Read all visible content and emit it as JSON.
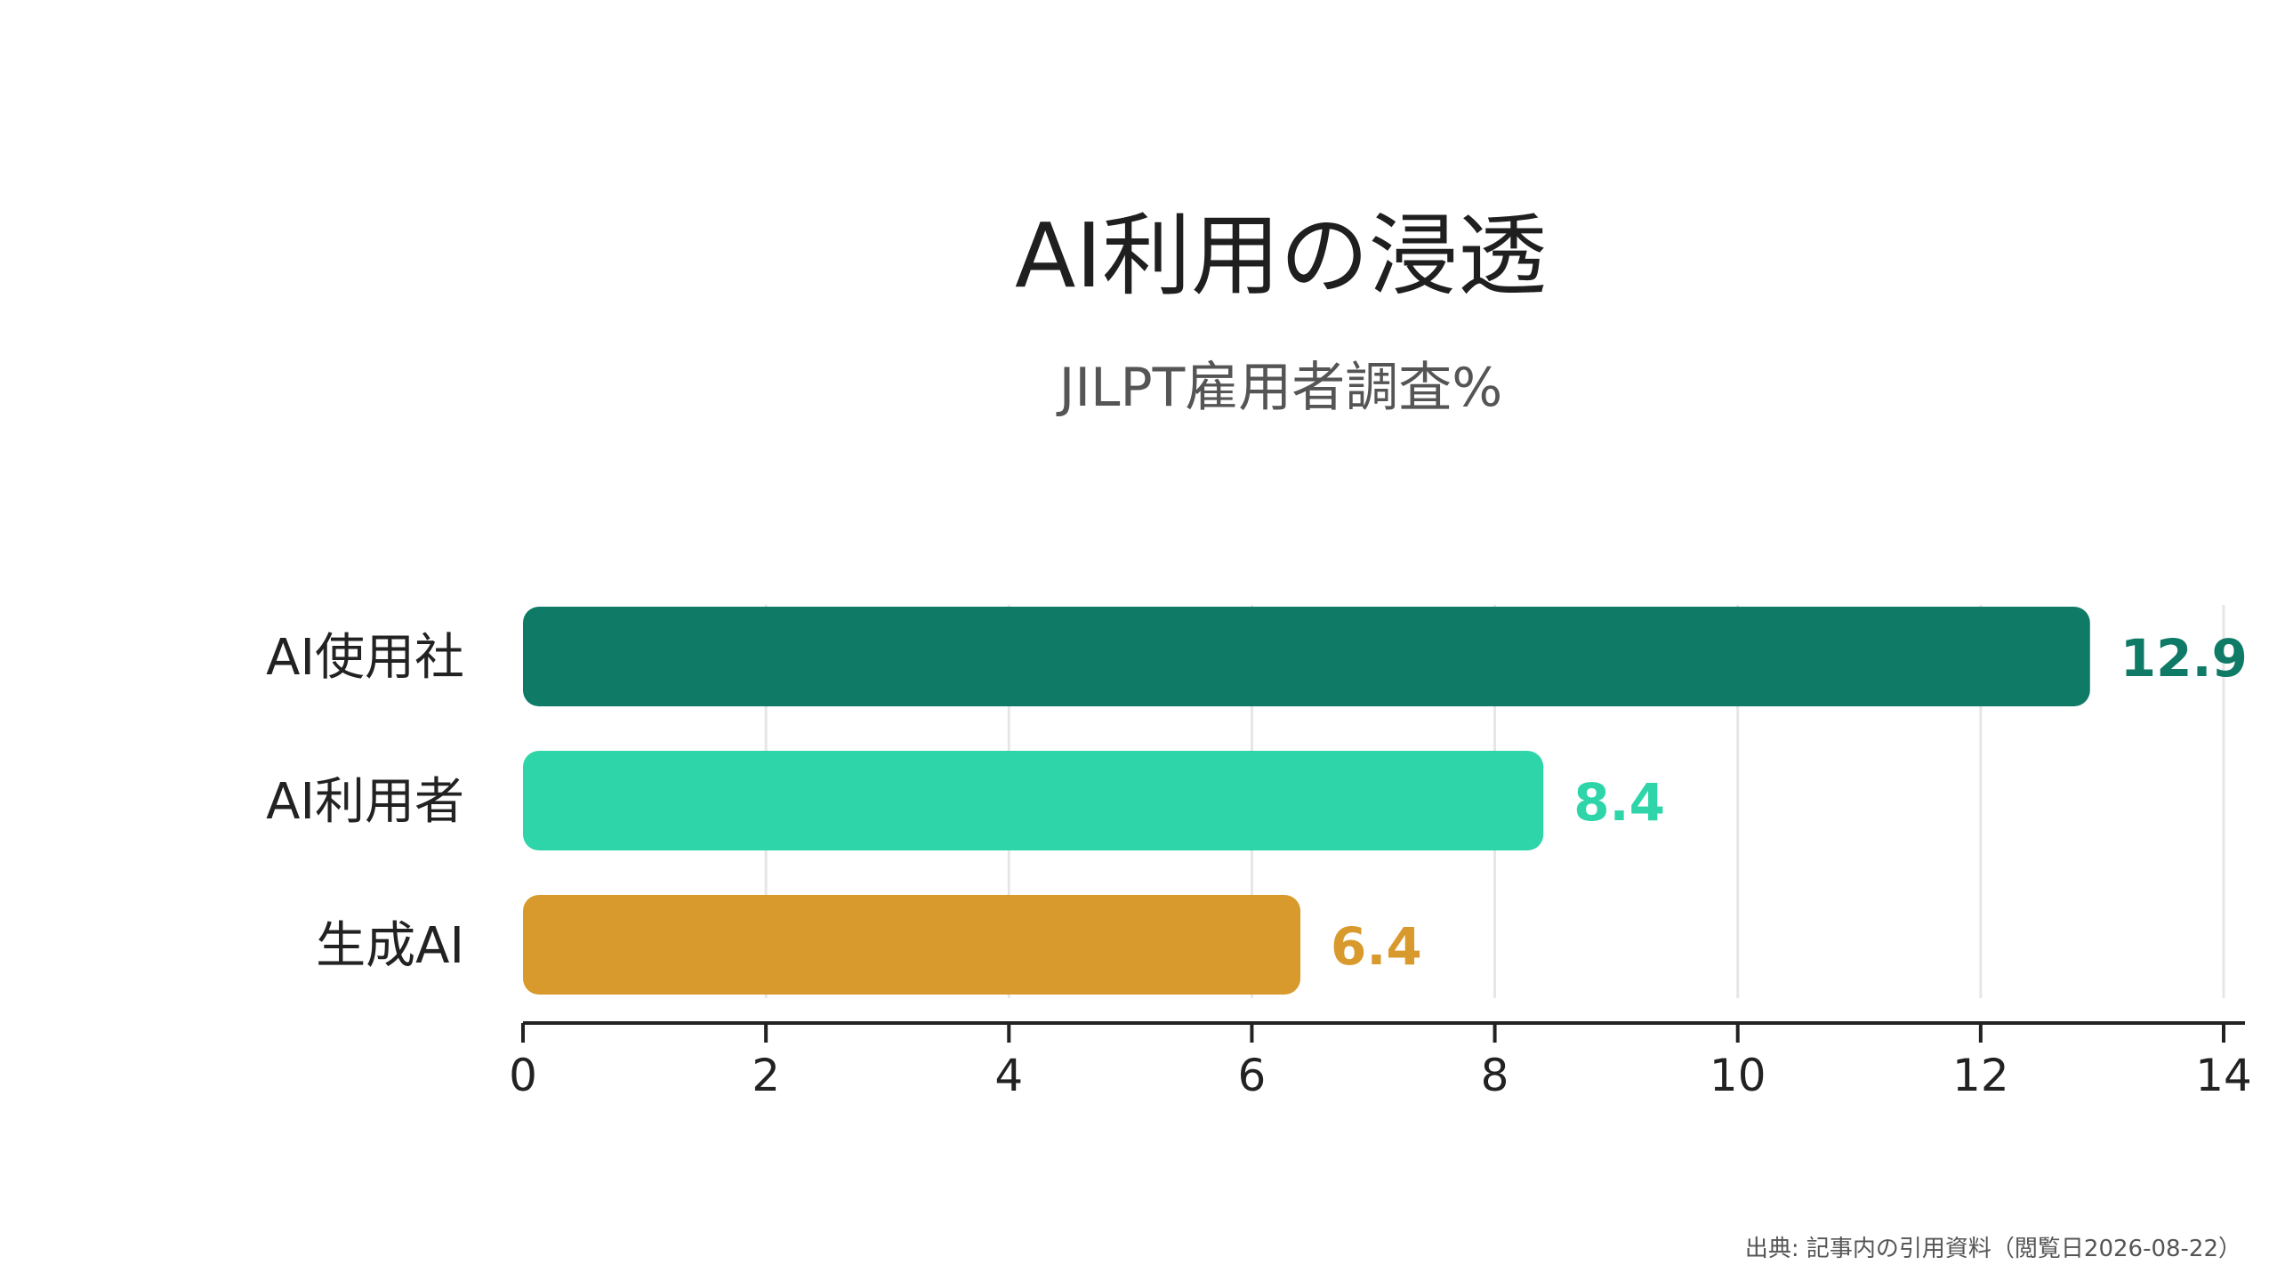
{
  "chart_data": {
    "type": "bar",
    "orientation": "horizontal",
    "title": "AI利用の浸透",
    "subtitle": "JILPT雇用者調査%",
    "categories": [
      "AI使用社",
      "AI利用者",
      "生成AI"
    ],
    "values": [
      12.9,
      8.4,
      6.4
    ],
    "value_labels": [
      "12.9",
      "8.4",
      "6.4"
    ],
    "colors": [
      "#0f7a65",
      "#2ed5a8",
      "#d89a2d"
    ],
    "xlim": [
      0,
      14
    ],
    "xticks": [
      0,
      2,
      4,
      6,
      8,
      10,
      12,
      14
    ],
    "xtick_labels": [
      "0",
      "2",
      "4",
      "6",
      "8",
      "10",
      "12",
      "14"
    ],
    "grid": "vertical",
    "legend": "none"
  },
  "source_note": "出典: 記事内の引用資料（閲覧日2026-08-22）"
}
